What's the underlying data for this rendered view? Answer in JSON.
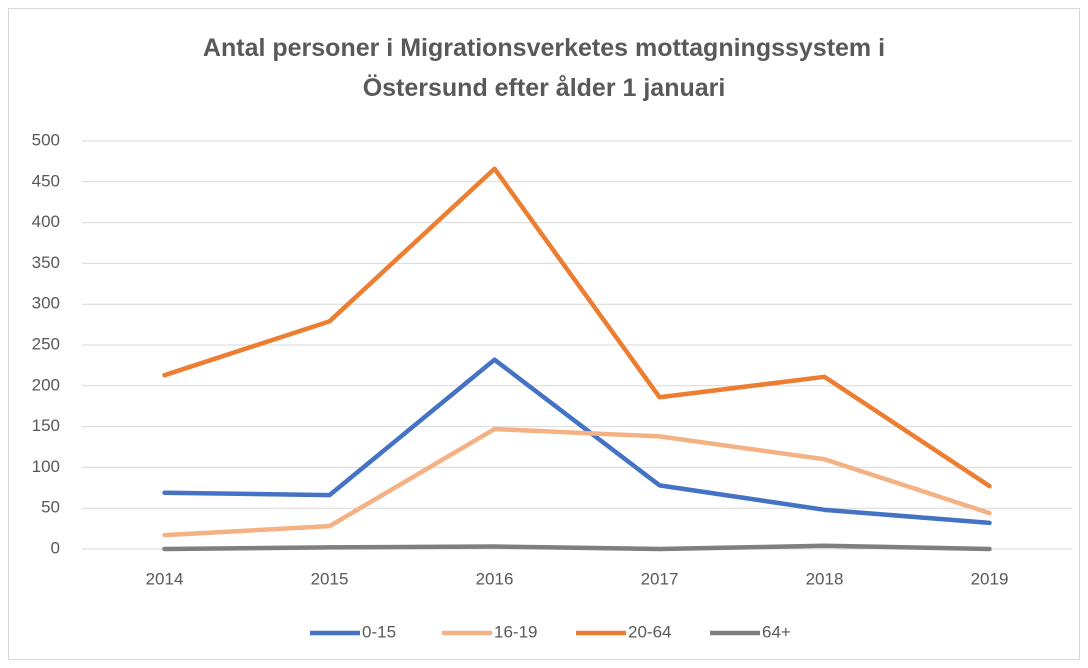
{
  "chart_data": {
    "type": "line",
    "title": "Antal personer i Migrationsverketes mottagningssystem i Östersund efter ålder 1 januari",
    "categories": [
      "2014",
      "2015",
      "2016",
      "2017",
      "2018",
      "2019"
    ],
    "series": [
      {
        "name": "0-15",
        "color": "#4472c4",
        "values": [
          69,
          66,
          232,
          78,
          48,
          32
        ]
      },
      {
        "name": "16-19",
        "color": "#f4b183",
        "values": [
          17,
          28,
          147,
          138,
          110,
          44
        ]
      },
      {
        "name": "20-64",
        "color": "#ed7d31",
        "values": [
          213,
          279,
          466,
          186,
          211,
          77
        ]
      },
      {
        "name": "64+",
        "color": "#7f7f7f",
        "values": [
          0,
          2,
          3,
          0,
          4,
          0
        ]
      }
    ],
    "ylim": [
      0,
      500
    ],
    "yticks": [
      0,
      50,
      100,
      150,
      200,
      250,
      300,
      350,
      400,
      450,
      500
    ],
    "grid": true,
    "legend": "bottom"
  }
}
